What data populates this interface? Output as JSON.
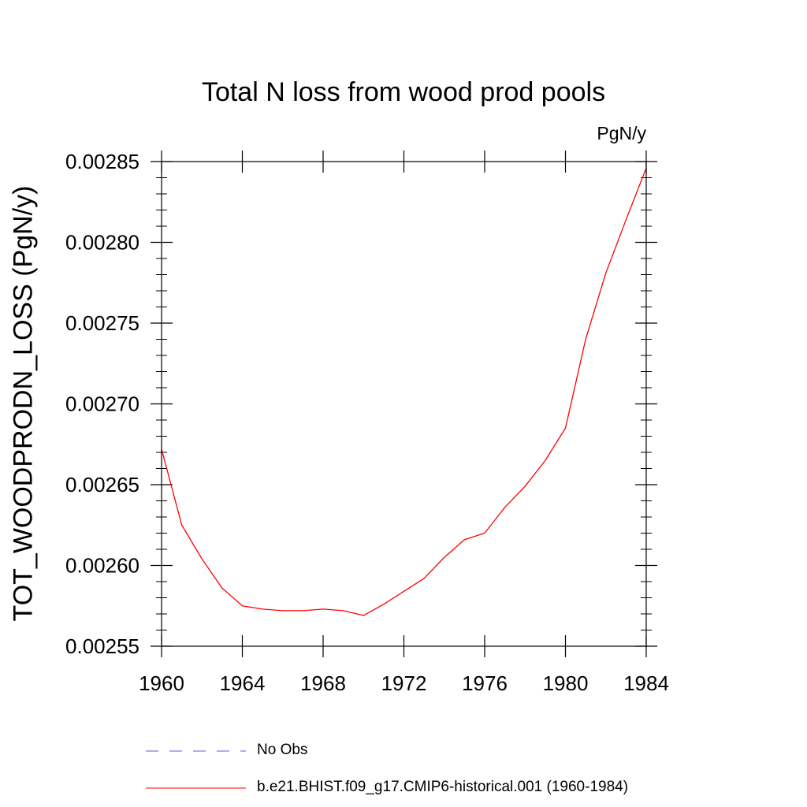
{
  "chart_data": {
    "type": "line",
    "title": "Total N loss from wood prod pools",
    "units": "PgN/y",
    "ylabel": "TOT_WOODPRODN_LOSS  (PgN/y)",
    "xlabel": "",
    "xlim": [
      1960,
      1984
    ],
    "ylim": [
      0.00255,
      0.00285
    ],
    "x_ticks": [
      "1960",
      "1964",
      "1968",
      "1972",
      "1976",
      "1980",
      "1984"
    ],
    "y_ticks": [
      "0.00255",
      "0.00260",
      "0.00265",
      "0.00270",
      "0.00275",
      "0.00280",
      "0.00285"
    ],
    "grid": false,
    "legend_position": "bottom",
    "series": [
      {
        "name": "b.e21.BHIST.f09_g17.CMIP6-historical.001 (1960-1984)",
        "color": "#ff0000",
        "style": "solid",
        "x": [
          1960,
          1961,
          1962,
          1963,
          1964,
          1965,
          1966,
          1967,
          1968,
          1969,
          1970,
          1971,
          1972,
          1973,
          1974,
          1975,
          1976,
          1977,
          1978,
          1979,
          1980,
          1981,
          1982,
          1983,
          1984
        ],
        "y": [
          0.002672,
          0.002625,
          0.002604,
          0.002586,
          0.002575,
          0.002573,
          0.002572,
          0.002572,
          0.002573,
          0.002572,
          0.002569,
          0.002576,
          0.002584,
          0.002592,
          0.002605,
          0.002616,
          0.00262,
          0.002636,
          0.002649,
          0.002665,
          0.002685,
          0.00274,
          0.002781,
          0.002814,
          0.002846
        ]
      }
    ],
    "legend": [
      {
        "label": "No Obs",
        "color": "#6a5acd",
        "style": "dashed"
      },
      {
        "label": "b.e21.BHIST.f09_g17.CMIP6-historical.001 (1960-1984)",
        "color": "#ff0000",
        "style": "solid"
      }
    ]
  }
}
